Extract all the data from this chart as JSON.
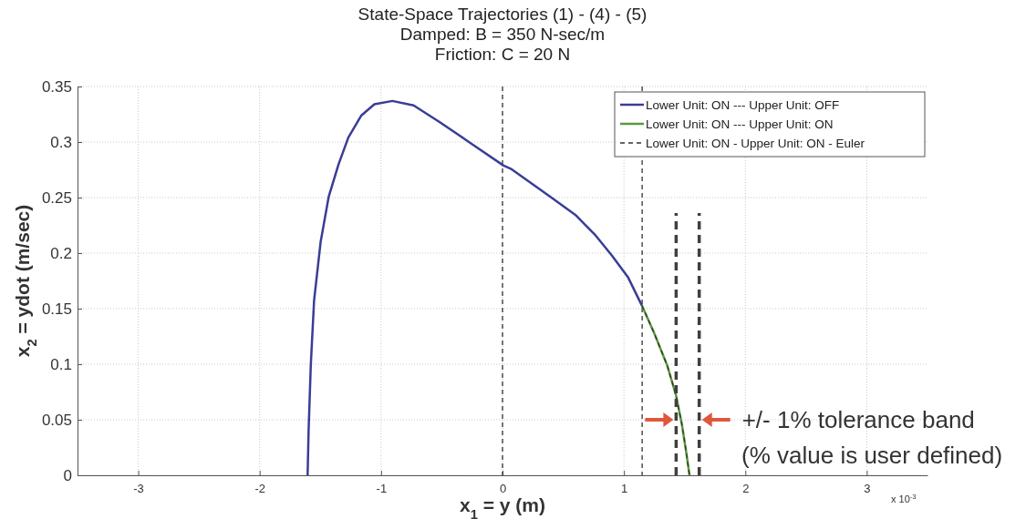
{
  "chart_data": {
    "type": "line",
    "title": "State-Space Trajectories (1) - (4) - (5)",
    "subtitle": "Damped: B = 350 N-sec/m\nFriction: C = 20 N",
    "xlabel": "x$_{1}$ = y (m)",
    "ylabel": "x$_{2}$ = ydot (m/sec)",
    "xlim": [
      -3.5,
      3.5
    ],
    "xticks": [
      -3,
      -2,
      -1,
      0,
      1,
      2,
      3
    ],
    "ylim": [
      0,
      0.35
    ],
    "yticks": [
      0,
      0.05,
      0.1,
      0.15,
      0.2,
      0.25,
      0.3,
      0.35
    ],
    "grid": true,
    "legend": "top right",
    "marker": "none",
    "series": [
      {
        "name": "Lower Unit: ON  ---  Upper Unit: OFF",
        "color": "#3a3d96",
        "line_style": "solid",
        "x": [
          -1.605,
          -1.597,
          -1.579,
          -1.552,
          -1.498,
          -1.431,
          -1.35,
          -1.27,
          -1.162,
          -1.055,
          -0.907,
          -0.732,
          -0.519,
          -0.249,
          0.006,
          0.068,
          0.39,
          0.605,
          0.766,
          0.9,
          1.035,
          1.147
        ],
        "values": [
          0,
          0.04,
          0.099,
          0.157,
          0.21,
          0.251,
          0.28,
          0.304,
          0.324,
          0.334,
          0.337,
          0.333,
          0.318,
          0.298,
          0.279,
          0.276,
          0.251,
          0.234,
          0.216,
          0.198,
          0.178,
          0.153
        ]
      },
      {
        "name": "Lower Unit: ON  ---  Upper Unit: ON",
        "color": "#5a9a3a",
        "line_style": "solid",
        "x": [
          1.147,
          1.249,
          1.356,
          1.429,
          1.477,
          1.51,
          1.54
        ],
        "values": [
          0.153,
          0.128,
          0.099,
          0.072,
          0.046,
          0.023,
          0
        ]
      },
      {
        "name": "Lower Unit: ON - Upper Unit: ON - Euler",
        "color": "#333333",
        "line_style": "dashed",
        "x": [
          1.147,
          1.249,
          1.356,
          1.429,
          1.477,
          1.51,
          1.54
        ],
        "values": [
          0.153,
          0.128,
          0.099,
          0.072,
          0.046,
          0.023,
          0
        ]
      },
      {
        "color": "#404040",
        "line_style": "dashed",
        "x": [
          1.43,
          1.43
        ],
        "values": [
          0,
          0.236
        ]
      },
      {
        "color": "#404040",
        "line_style": "dashed",
        "x": [
          1.62,
          1.62
        ],
        "values": [
          0,
          0.236
        ]
      }
    ],
    "ref_lines": [
      {
        "axis": "x",
        "value": 0,
        "color": "#333333",
        "line_style": "dashed"
      },
      {
        "axis": "x",
        "value": 1.15,
        "color": "#333333",
        "line_style": "dashed"
      }
    ],
    "annotations": [
      "x 10$^{-3}$",
      {
        "text": "+/- 1% tolerance band",
        "x": 1.62,
        "y": 0.05
      },
      "(% value is user defined)"
    ]
  }
}
